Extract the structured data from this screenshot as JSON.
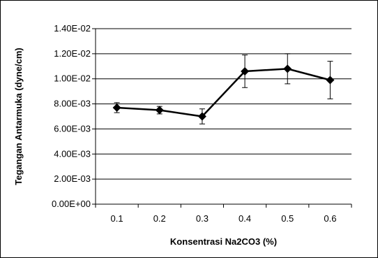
{
  "chart_data": {
    "type": "line",
    "xlabel": "Konsentrasi Na2CO3 (%)",
    "ylabel": "Tegangan Antarmuka (dyne/cm)",
    "categories": [
      "0.1",
      "0.2",
      "0.3",
      "0.4",
      "0.5",
      "0.6"
    ],
    "series": [
      {
        "values": [
          0.0077,
          0.0075,
          0.007,
          0.0106,
          0.0108,
          0.0099
        ],
        "error": [
          0.0004,
          0.0003,
          0.0006,
          0.0013,
          0.0012,
          0.0015
        ],
        "marker": "diamond",
        "color": "#000000"
      }
    ],
    "ylim": [
      0,
      0.014
    ],
    "yticks": [
      0,
      0.002,
      0.004,
      0.006,
      0.008,
      0.01,
      0.012,
      0.014
    ],
    "ytick_labels": [
      "0.00E+00",
      "2.00E-03",
      "4.00E-03",
      "6.00E-03",
      "8.00E-03",
      "1.00E-02",
      "1.20E-02",
      "1.40E-02"
    ],
    "grid": true,
    "legend": "none"
  }
}
